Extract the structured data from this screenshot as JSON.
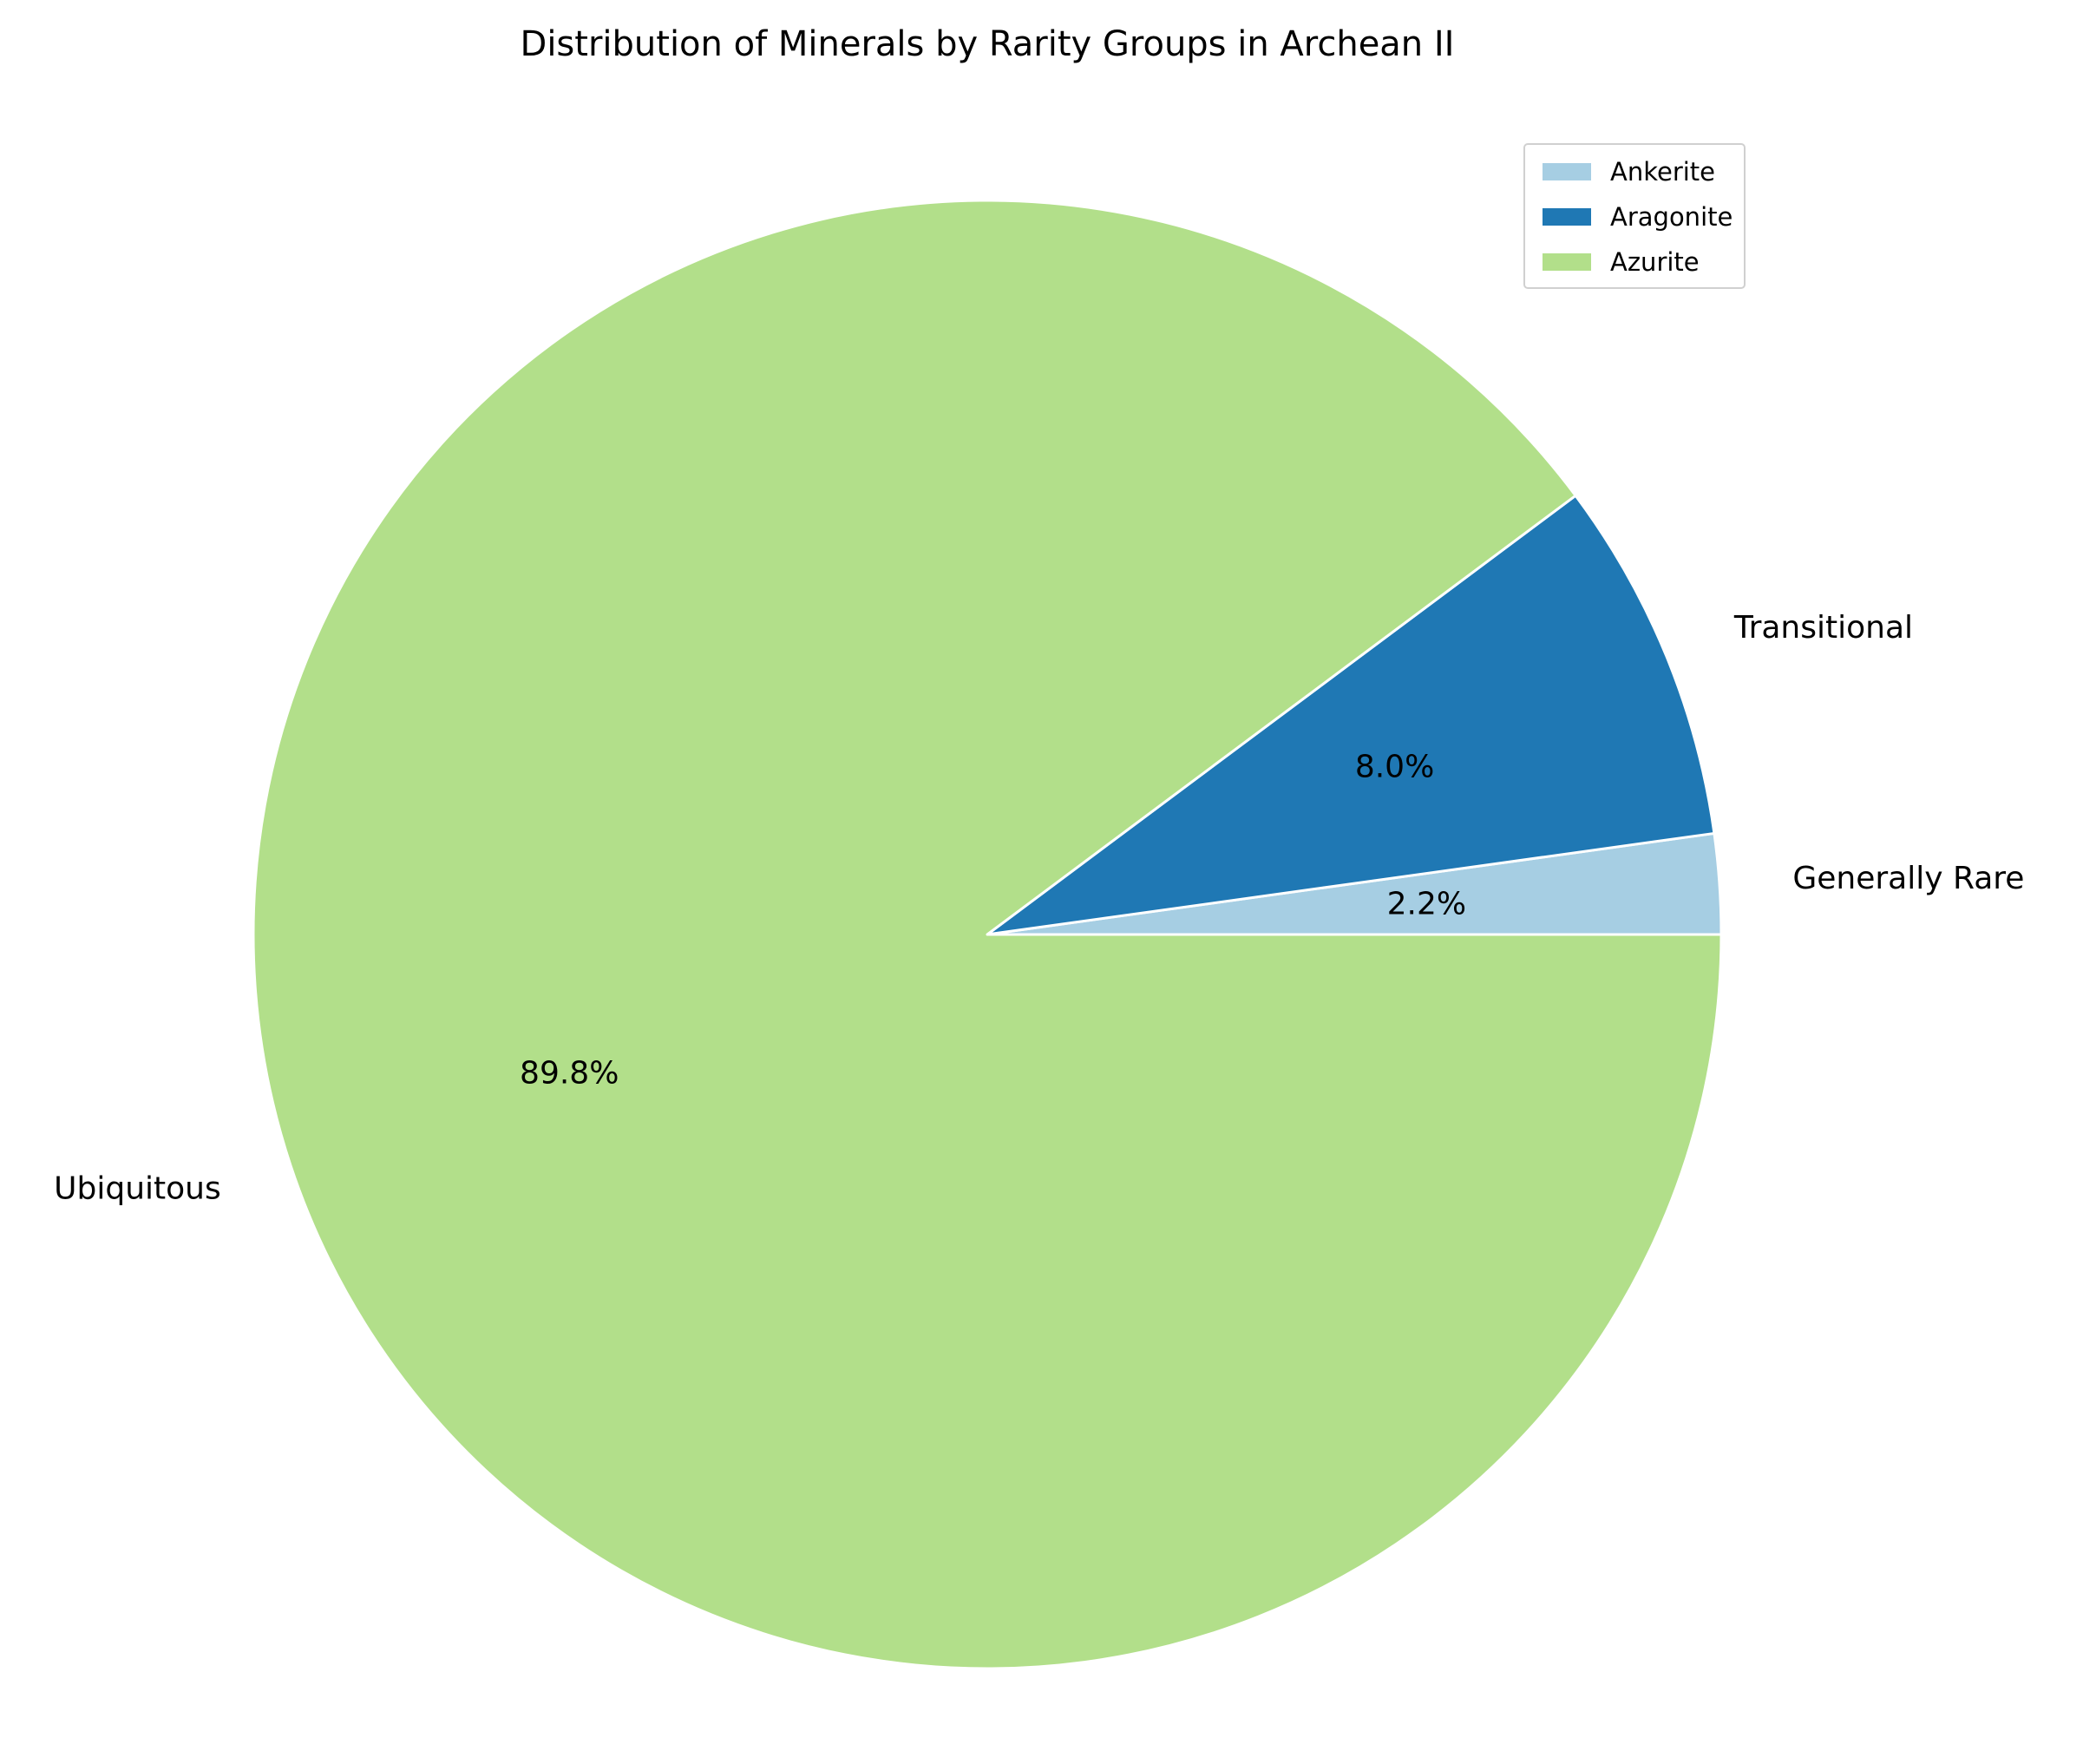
{
  "chart_data": {
    "type": "pie",
    "title": "Distribution of Minerals by Rarity Groups in Archean II",
    "slice_labels": [
      "Generally Rare",
      "Transitional",
      "Ubiquitous"
    ],
    "values": [
      2.2,
      8.0,
      89.8
    ],
    "percent_labels": [
      "2.2%",
      "8.0%",
      "89.8%"
    ],
    "colors": [
      "#a6cee3",
      "#1f78b4",
      "#b2df8a"
    ],
    "start_angle_deg": 0,
    "direction": "counterclockwise",
    "edge_color": "#ffffff",
    "legend": {
      "entries": [
        "Ankerite",
        "Aragonite",
        "Azurite"
      ],
      "placement": "top-right"
    }
  }
}
